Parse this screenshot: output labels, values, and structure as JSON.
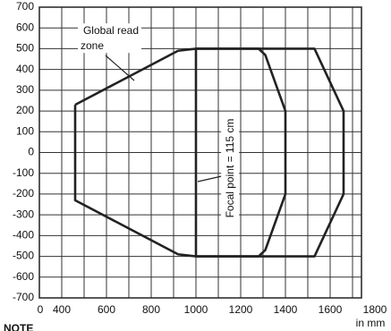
{
  "chart_data": {
    "type": "line",
    "xlim": [
      300,
      1740
    ],
    "ylim": [
      -700,
      700
    ],
    "xticks": [
      400,
      600,
      800,
      1000,
      1200,
      1400,
      1600,
      1800
    ],
    "yticks": [
      700,
      600,
      500,
      400,
      300,
      200,
      100,
      0,
      -100,
      -200,
      -300,
      -400,
      -500,
      -600,
      -700
    ],
    "x_break_label": "0",
    "grid": true,
    "grid_step_x": 100,
    "x_unit": "in mm",
    "annotations": [
      "Global read zone",
      "Focal point = 115 cm"
    ],
    "note": "NOTE",
    "series": [
      {
        "color": "#222222",
        "x": [
          460,
          920,
          1000,
          1530,
          1660,
          1660,
          1530,
          1000,
          920,
          460,
          460
        ],
        "values": [
          230,
          490,
          500,
          500,
          200,
          -200,
          -500,
          -500,
          -490,
          -230,
          230
        ]
      },
      {
        "color": "#222222",
        "x": [
          1000,
          1280,
          1310,
          1400,
          1400,
          1310,
          1280,
          1000,
          1000
        ],
        "values": [
          500,
          500,
          470,
          200,
          -200,
          -470,
          -500,
          -500,
          500
        ]
      }
    ]
  }
}
